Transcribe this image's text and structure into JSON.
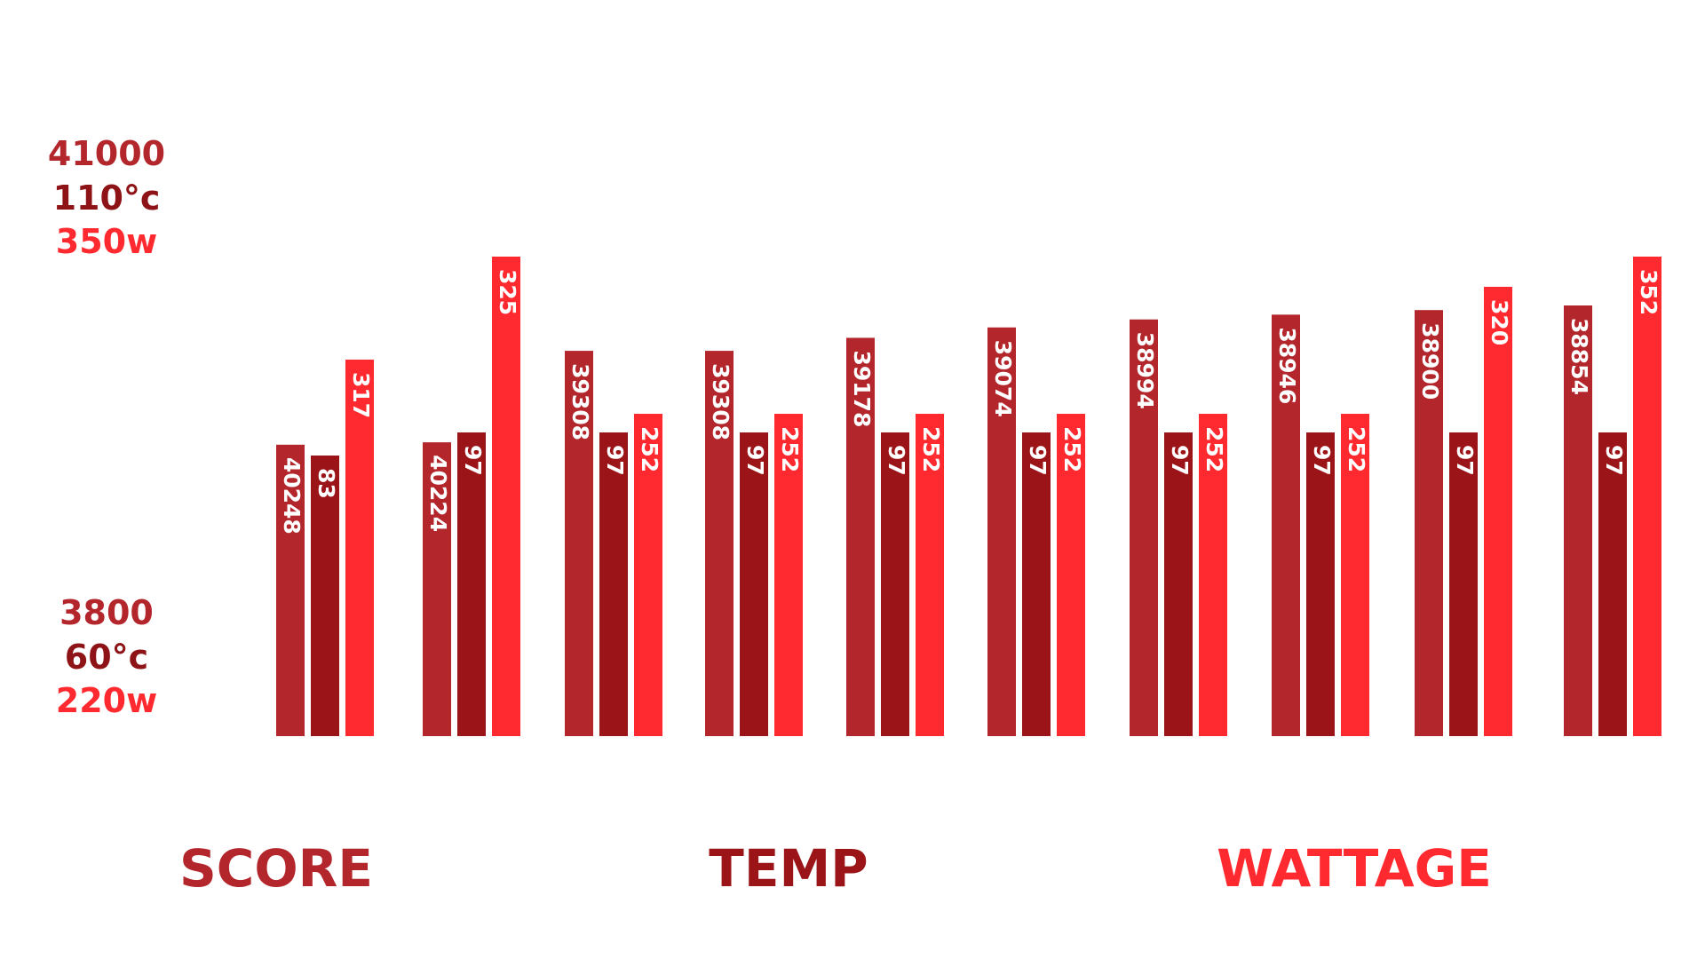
{
  "chart_data": {
    "type": "bar",
    "categories": [
      "",
      "",
      "",
      "",
      "",
      "",
      "",
      "",
      "",
      ""
    ],
    "series": [
      {
        "name": "SCORE",
        "color": "#b3262c",
        "values": [
          40248,
          40224,
          39308,
          39308,
          39178,
          39074,
          38994,
          38946,
          38900,
          38854
        ],
        "labels": [
          "40248",
          "40224",
          "39308",
          "39308",
          "39178",
          "39074",
          "38994",
          "38946",
          "38900",
          "38854"
        ]
      },
      {
        "name": "TEMP",
        "color": "#9b1518",
        "values": [
          83,
          97,
          97,
          97,
          97,
          97,
          97,
          97,
          97,
          97
        ],
        "labels": [
          "83",
          "97",
          "97",
          "97",
          "97",
          "97",
          "97",
          "97",
          "97",
          "97"
        ]
      },
      {
        "name": "WATTAGE",
        "color": "#ff2a2f",
        "values": [
          317,
          325,
          252,
          252,
          252,
          252,
          252,
          252,
          320,
          352
        ],
        "labels": [
          "317",
          "325",
          "252",
          "252",
          "252",
          "252",
          "252",
          "252",
          "320",
          "352"
        ]
      }
    ],
    "axes": [
      {
        "series": "SCORE",
        "max_label": "41000",
        "min_label": "3800",
        "color": "#b3262c"
      },
      {
        "series": "TEMP",
        "max_label": "110°c",
        "min_label": "60°c",
        "color": "#8e1316"
      },
      {
        "series": "WATTAGE",
        "max_label": "350w",
        "min_label": "220w",
        "color": "#ff2a2f"
      }
    ],
    "grid": false,
    "legend_position": "bottom",
    "title": "",
    "xlabel": "",
    "ylabel": ""
  }
}
